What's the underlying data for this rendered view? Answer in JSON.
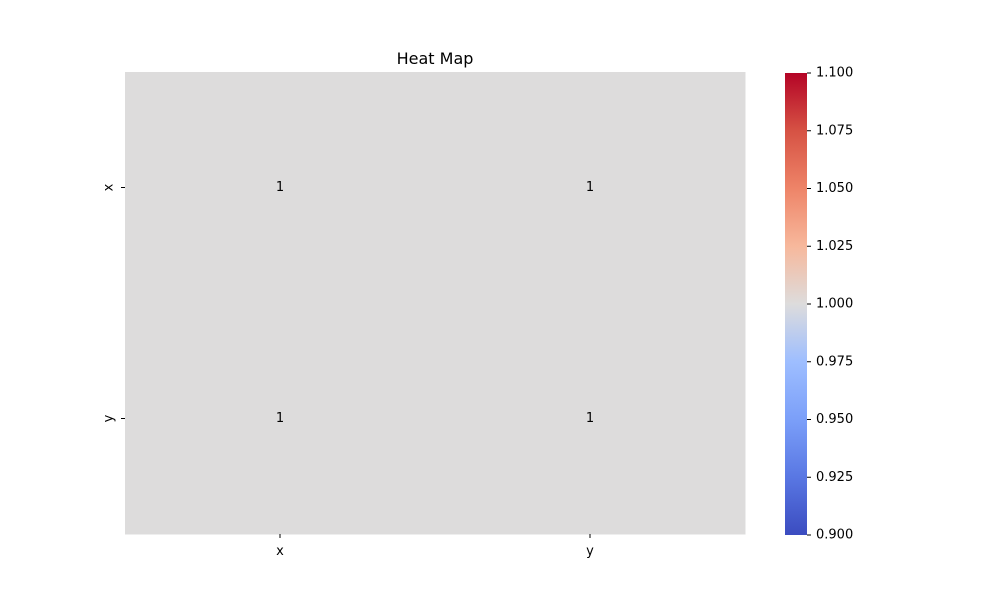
{
  "chart_data": {
    "type": "heatmap",
    "title": "Heat Map",
    "x_categories": [
      "x",
      "y"
    ],
    "y_categories": [
      "x",
      "y"
    ],
    "values": [
      [
        1,
        1
      ],
      [
        1,
        1
      ]
    ],
    "annotations": [
      [
        "1",
        "1"
      ],
      [
        "1",
        "1"
      ]
    ],
    "colorbar": {
      "colormap": "coolwarm",
      "range": [
        0.9,
        1.1
      ],
      "ticks": [
        0.9,
        0.925,
        0.95,
        0.975,
        1.0,
        1.025,
        1.05,
        1.075,
        1.1
      ],
      "tick_labels": [
        "0.900",
        "0.925",
        "0.950",
        "0.975",
        "1.000",
        "1.025",
        "1.050",
        "1.075",
        "1.100"
      ]
    },
    "cell_color": "#dddcdc",
    "grid": false
  }
}
